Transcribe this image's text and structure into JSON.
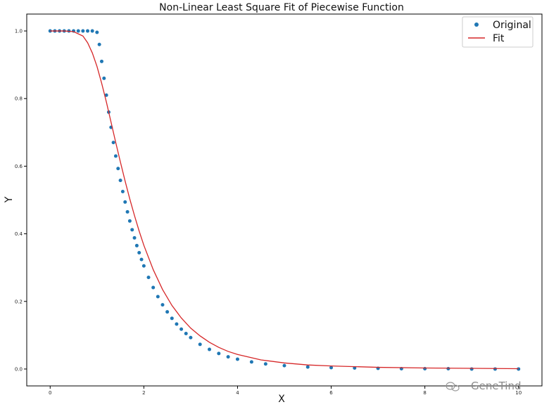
{
  "watermark": "GeneTind",
  "colors": {
    "original": "#1f77b4",
    "fit": "#d62728"
  },
  "chart_data": {
    "type": "scatter",
    "title": "Non-Linear Least Square Fit of Piecewise Function",
    "xlabel": "X",
    "ylabel": "Y",
    "xlim": [
      -0.5,
      10.5
    ],
    "ylim": [
      -0.05,
      1.05
    ],
    "xticks": [
      0,
      2,
      4,
      6,
      8,
      10
    ],
    "yticks": [
      0.0,
      0.2,
      0.4,
      0.6,
      0.8,
      1.0
    ],
    "xtick_labels": [
      "0",
      "2",
      "4",
      "6",
      "8",
      "10"
    ],
    "ytick_labels": [
      "0.0",
      "0.2",
      "0.4",
      "0.6",
      "0.8",
      "1.0"
    ],
    "grid": false,
    "legend": "top-right",
    "series": [
      {
        "name": "Original",
        "kind": "markers",
        "color": "#1f77b4",
        "x": [
          0.0,
          0.1,
          0.2,
          0.3,
          0.4,
          0.5,
          0.6,
          0.7,
          0.8,
          0.9,
          1.0,
          1.05,
          1.1,
          1.15,
          1.2,
          1.25,
          1.3,
          1.35,
          1.4,
          1.45,
          1.5,
          1.55,
          1.6,
          1.65,
          1.7,
          1.75,
          1.8,
          1.85,
          1.9,
          1.95,
          2.0,
          2.1,
          2.2,
          2.3,
          2.4,
          2.5,
          2.6,
          2.7,
          2.8,
          2.9,
          3.0,
          3.2,
          3.4,
          3.6,
          3.8,
          4.0,
          4.3,
          4.6,
          5.0,
          5.5,
          6.0,
          6.5,
          7.0,
          7.5,
          8.0,
          8.5,
          9.0,
          9.5,
          10.0
        ],
        "y": [
          1.0,
          1.0,
          1.0,
          1.0,
          1.0,
          1.0,
          1.0,
          1.0,
          1.0,
          1.0,
          0.996,
          0.96,
          0.91,
          0.86,
          0.81,
          0.76,
          0.715,
          0.67,
          0.63,
          0.593,
          0.558,
          0.525,
          0.494,
          0.465,
          0.438,
          0.412,
          0.388,
          0.365,
          0.344,
          0.324,
          0.305,
          0.271,
          0.241,
          0.214,
          0.19,
          0.169,
          0.15,
          0.133,
          0.118,
          0.105,
          0.093,
          0.073,
          0.058,
          0.046,
          0.036,
          0.029,
          0.021,
          0.015,
          0.01,
          0.006,
          0.004,
          0.003,
          0.002,
          0.001,
          0.001,
          0.001,
          0.0,
          0.0,
          0.0
        ]
      },
      {
        "name": "Fit",
        "kind": "line",
        "color": "#d62728",
        "x": [
          0.0,
          0.3,
          0.5,
          0.7,
          0.8,
          0.9,
          1.0,
          1.1,
          1.2,
          1.3,
          1.4,
          1.5,
          1.6,
          1.7,
          1.8,
          1.9,
          2.0,
          2.2,
          2.4,
          2.6,
          2.8,
          3.0,
          3.2,
          3.4,
          3.6,
          3.8,
          4.0,
          4.5,
          5.0,
          5.5,
          6.0,
          7.0,
          8.0,
          9.0,
          10.0
        ],
        "y": [
          1.0,
          1.0,
          0.998,
          0.985,
          0.965,
          0.935,
          0.895,
          0.845,
          0.79,
          0.73,
          0.67,
          0.612,
          0.556,
          0.503,
          0.454,
          0.408,
          0.366,
          0.294,
          0.235,
          0.188,
          0.151,
          0.121,
          0.098,
          0.079,
          0.064,
          0.052,
          0.043,
          0.027,
          0.018,
          0.012,
          0.009,
          0.005,
          0.003,
          0.002,
          0.001
        ]
      }
    ]
  }
}
